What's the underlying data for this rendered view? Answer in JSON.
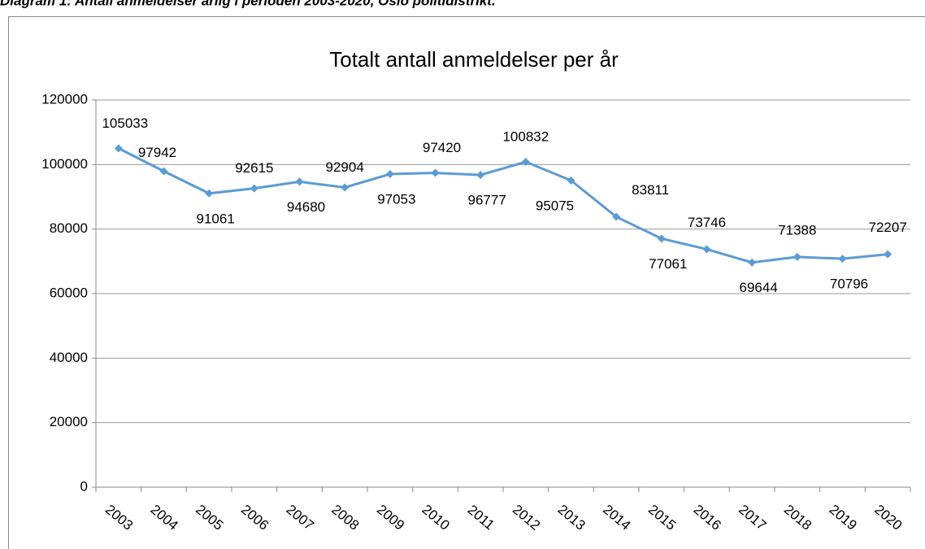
{
  "caption": "Diagram 1: Antall anmeldelser årlig i perioden 2003-2020, Oslo politidistrikt.",
  "chart_data": {
    "type": "line",
    "title": "Totalt antall anmeldelser per år",
    "categories": [
      "2003",
      "2004",
      "2005",
      "2006",
      "2007",
      "2008",
      "2009",
      "2010",
      "2011",
      "2012",
      "2013",
      "2014",
      "2015",
      "2016",
      "2017",
      "2018",
      "2019",
      "2020"
    ],
    "series": [
      {
        "name": "Totalt antall anmeldelser",
        "color": "#5b9bd5",
        "values": [
          105033,
          97942,
          91061,
          92615,
          94680,
          92904,
          97053,
          97420,
          96777,
          100832,
          95075,
          83811,
          77061,
          73746,
          69644,
          71388,
          70796,
          72207
        ]
      }
    ],
    "ylim": [
      0,
      120000
    ],
    "yticks": [
      0,
      20000,
      40000,
      60000,
      80000,
      100000,
      120000
    ],
    "grid": true
  }
}
